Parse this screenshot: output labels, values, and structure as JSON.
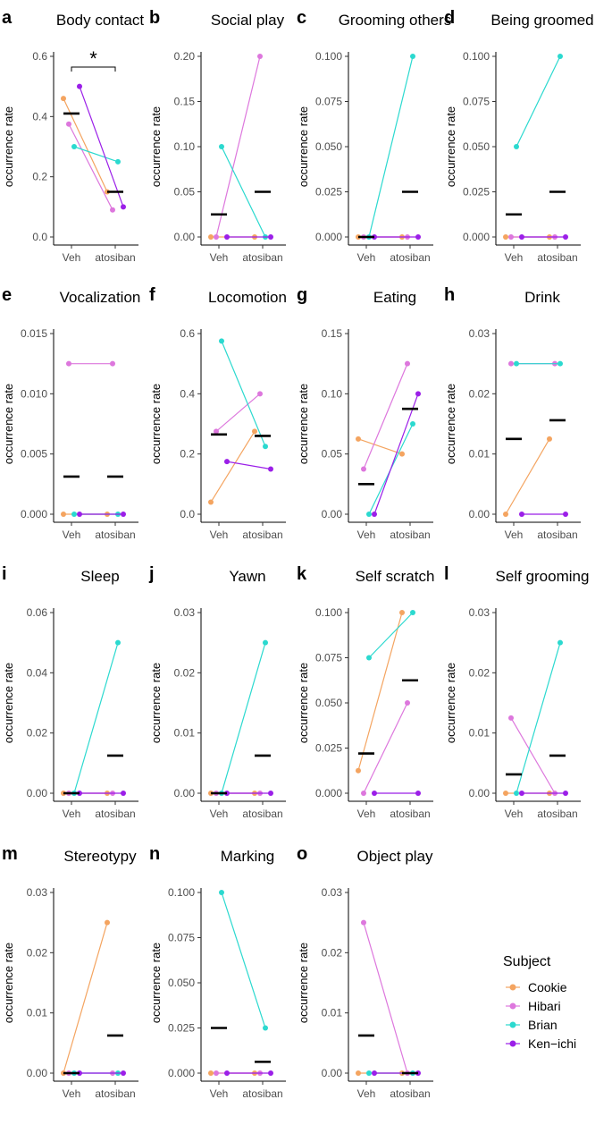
{
  "figure": {
    "y_axis_label": "occurrence rate",
    "conditions": [
      "Veh",
      "atosiban"
    ]
  },
  "legend": {
    "title": "Subject",
    "entries": [
      {
        "name": "Cookie",
        "color": "#f4a460"
      },
      {
        "name": "Hibari",
        "color": "#dd77dd"
      },
      {
        "name": "Brian",
        "color": "#2bd9cf"
      },
      {
        "name": "Ken−ichi",
        "color": "#9b1fe8"
      }
    ]
  },
  "chart_data": [
    {
      "letter": "a",
      "title": "Body contact",
      "type": "line",
      "categories": [
        "Veh",
        "atosiban"
      ],
      "ylim": [
        0,
        0.6
      ],
      "yticks": [
        "0.0",
        "0.2",
        "0.4",
        "0.6"
      ],
      "yticks_values": [
        0,
        0.2,
        0.4,
        0.6
      ],
      "series": [
        {
          "name": "Cookie",
          "values": [
            0.46,
            0.15
          ]
        },
        {
          "name": "Hibari",
          "values": [
            0.375,
            0.09
          ]
        },
        {
          "name": "Brian",
          "values": [
            0.3,
            0.25
          ]
        },
        {
          "name": "Ken−ichi",
          "values": [
            0.5,
            0.1
          ]
        }
      ],
      "means": [
        0.41,
        0.15
      ],
      "significance": "*"
    },
    {
      "letter": "b",
      "title": "Social play",
      "type": "line",
      "categories": [
        "Veh",
        "atosiban"
      ],
      "ylim": [
        0,
        0.2
      ],
      "yticks": [
        "0.00",
        "0.05",
        "0.10",
        "0.15",
        "0.20"
      ],
      "yticks_values": [
        0,
        0.05,
        0.1,
        0.15,
        0.2
      ],
      "series": [
        {
          "name": "Cookie",
          "values": [
            0,
            0
          ]
        },
        {
          "name": "Hibari",
          "values": [
            0,
            0.2
          ]
        },
        {
          "name": "Brian",
          "values": [
            0.1,
            0
          ]
        },
        {
          "name": "Ken−ichi",
          "values": [
            0,
            0
          ]
        }
      ],
      "means": [
        0.025,
        0.05
      ]
    },
    {
      "letter": "c",
      "title": "Grooming others",
      "type": "line",
      "categories": [
        "Veh",
        "atosiban"
      ],
      "ylim": [
        0,
        0.1
      ],
      "yticks": [
        "0.000",
        "0.025",
        "0.050",
        "0.075",
        "0.100"
      ],
      "yticks_values": [
        0,
        0.025,
        0.05,
        0.075,
        0.1
      ],
      "series": [
        {
          "name": "Cookie",
          "values": [
            0,
            0
          ]
        },
        {
          "name": "Hibari",
          "values": [
            0,
            0
          ]
        },
        {
          "name": "Brian",
          "values": [
            0,
            0.1
          ]
        },
        {
          "name": "Ken−ichi",
          "values": [
            0,
            0
          ]
        }
      ],
      "means": [
        0,
        0.025
      ]
    },
    {
      "letter": "d",
      "title": "Being groomed",
      "type": "line",
      "categories": [
        "Veh",
        "atosiban"
      ],
      "ylim": [
        0,
        0.1
      ],
      "yticks": [
        "0.000",
        "0.025",
        "0.050",
        "0.075",
        "0.100"
      ],
      "yticks_values": [
        0,
        0.025,
        0.05,
        0.075,
        0.1
      ],
      "series": [
        {
          "name": "Cookie",
          "values": [
            0,
            0
          ]
        },
        {
          "name": "Hibari",
          "values": [
            0,
            0
          ]
        },
        {
          "name": "Brian",
          "values": [
            0.05,
            0.1
          ]
        },
        {
          "name": "Ken−ichi",
          "values": [
            0,
            0
          ]
        }
      ],
      "means": [
        0.0125,
        0.025
      ]
    },
    {
      "letter": "e",
      "title": "Vocalization",
      "type": "line",
      "categories": [
        "Veh",
        "atosiban"
      ],
      "ylim": [
        0,
        0.015
      ],
      "yticks": [
        "0.000",
        "0.005",
        "0.010",
        "0.015"
      ],
      "yticks_values": [
        0,
        0.005,
        0.01,
        0.015
      ],
      "series": [
        {
          "name": "Cookie",
          "values": [
            0,
            0
          ]
        },
        {
          "name": "Hibari",
          "values": [
            0.0125,
            0.0125
          ]
        },
        {
          "name": "Brian",
          "values": [
            0,
            0
          ]
        },
        {
          "name": "Ken−ichi",
          "values": [
            0,
            0
          ]
        }
      ],
      "means": [
        0.003125,
        0.003125
      ]
    },
    {
      "letter": "f",
      "title": "Locomotion",
      "type": "line",
      "categories": [
        "Veh",
        "atosiban"
      ],
      "ylim": [
        0,
        0.6
      ],
      "yticks": [
        "0.0",
        "0.2",
        "0.4",
        "0.6"
      ],
      "yticks_values": [
        0,
        0.2,
        0.4,
        0.6
      ],
      "series": [
        {
          "name": "Cookie",
          "values": [
            0.04,
            0.275
          ]
        },
        {
          "name": "Hibari",
          "values": [
            0.275,
            0.4
          ]
        },
        {
          "name": "Brian",
          "values": [
            0.575,
            0.225
          ]
        },
        {
          "name": "Ken−ichi",
          "values": [
            0.175,
            0.15
          ]
        }
      ],
      "means": [
        0.265,
        0.26
      ]
    },
    {
      "letter": "g",
      "title": "Eating",
      "type": "line",
      "categories": [
        "Veh",
        "atosiban"
      ],
      "ylim": [
        0,
        0.15
      ],
      "yticks": [
        "0.00",
        "0.05",
        "0.10",
        "0.15"
      ],
      "yticks_values": [
        0,
        0.05,
        0.1,
        0.15
      ],
      "series": [
        {
          "name": "Cookie",
          "values": [
            0.0625,
            0.05
          ]
        },
        {
          "name": "Hibari",
          "values": [
            0.0375,
            0.125
          ]
        },
        {
          "name": "Brian",
          "values": [
            0,
            0.075
          ]
        },
        {
          "name": "Ken−ichi",
          "values": [
            0,
            0.1
          ]
        }
      ],
      "means": [
        0.025,
        0.0875
      ]
    },
    {
      "letter": "h",
      "title": "Drink",
      "type": "line",
      "categories": [
        "Veh",
        "atosiban"
      ],
      "ylim": [
        0,
        0.03
      ],
      "yticks": [
        "0.00",
        "0.01",
        "0.02",
        "0.03"
      ],
      "yticks_values": [
        0,
        0.01,
        0.02,
        0.03
      ],
      "series": [
        {
          "name": "Cookie",
          "values": [
            0,
            0.0125
          ]
        },
        {
          "name": "Hibari",
          "values": [
            0.025,
            0.025
          ]
        },
        {
          "name": "Brian",
          "values": [
            0.025,
            0.025
          ]
        },
        {
          "name": "Ken−ichi",
          "values": [
            0,
            0
          ]
        }
      ],
      "means": [
        0.0125,
        0.0156
      ]
    },
    {
      "letter": "i",
      "title": "Sleep",
      "type": "line",
      "categories": [
        "Veh",
        "atosiban"
      ],
      "ylim": [
        0,
        0.06
      ],
      "yticks": [
        "0.00",
        "0.02",
        "0.04",
        "0.06"
      ],
      "yticks_values": [
        0,
        0.02,
        0.04,
        0.06
      ],
      "series": [
        {
          "name": "Cookie",
          "values": [
            0,
            0
          ]
        },
        {
          "name": "Hibari",
          "values": [
            0,
            0
          ]
        },
        {
          "name": "Brian",
          "values": [
            0,
            0.05
          ]
        },
        {
          "name": "Ken−ichi",
          "values": [
            0,
            0
          ]
        }
      ],
      "means": [
        0,
        0.0125
      ]
    },
    {
      "letter": "j",
      "title": "Yawn",
      "type": "line",
      "categories": [
        "Veh",
        "atosiban"
      ],
      "ylim": [
        0,
        0.03
      ],
      "yticks": [
        "0.00",
        "0.01",
        "0.02",
        "0.03"
      ],
      "yticks_values": [
        0,
        0.01,
        0.02,
        0.03
      ],
      "series": [
        {
          "name": "Cookie",
          "values": [
            0,
            0
          ]
        },
        {
          "name": "Hibari",
          "values": [
            0,
            0
          ]
        },
        {
          "name": "Brian",
          "values": [
            0,
            0.025
          ]
        },
        {
          "name": "Ken−ichi",
          "values": [
            0,
            0
          ]
        }
      ],
      "means": [
        0,
        0.00625
      ]
    },
    {
      "letter": "k",
      "title": "Self scratch",
      "type": "line",
      "categories": [
        "Veh",
        "atosiban"
      ],
      "ylim": [
        0,
        0.1
      ],
      "yticks": [
        "0.000",
        "0.025",
        "0.050",
        "0.075",
        "0.100"
      ],
      "yticks_values": [
        0,
        0.025,
        0.05,
        0.075,
        0.1
      ],
      "series": [
        {
          "name": "Cookie",
          "values": [
            0.0125,
            0.1
          ]
        },
        {
          "name": "Hibari",
          "values": [
            0,
            0.05
          ]
        },
        {
          "name": "Brian",
          "values": [
            0.075,
            0.1
          ]
        },
        {
          "name": "Ken−ichi",
          "values": [
            0,
            0
          ]
        }
      ],
      "means": [
        0.022,
        0.0625
      ]
    },
    {
      "letter": "l",
      "title": "Self grooming",
      "type": "line",
      "categories": [
        "Veh",
        "atosiban"
      ],
      "ylim": [
        0,
        0.03
      ],
      "yticks": [
        "0.00",
        "0.01",
        "0.02",
        "0.03"
      ],
      "yticks_values": [
        0,
        0.01,
        0.02,
        0.03
      ],
      "series": [
        {
          "name": "Cookie",
          "values": [
            0,
            0
          ]
        },
        {
          "name": "Hibari",
          "values": [
            0.0125,
            0
          ]
        },
        {
          "name": "Brian",
          "values": [
            0,
            0.025
          ]
        },
        {
          "name": "Ken−ichi",
          "values": [
            0,
            0
          ]
        }
      ],
      "means": [
        0.003125,
        0.00625
      ]
    },
    {
      "letter": "m",
      "title": "Stereotypy",
      "type": "line",
      "categories": [
        "Veh",
        "atosiban"
      ],
      "ylim": [
        0,
        0.03
      ],
      "yticks": [
        "0.00",
        "0.01",
        "0.02",
        "0.03"
      ],
      "yticks_values": [
        0,
        0.01,
        0.02,
        0.03
      ],
      "series": [
        {
          "name": "Cookie",
          "values": [
            0,
            0.025
          ]
        },
        {
          "name": "Hibari",
          "values": [
            0,
            0
          ]
        },
        {
          "name": "Brian",
          "values": [
            0,
            0
          ]
        },
        {
          "name": "Ken−ichi",
          "values": [
            0,
            0
          ]
        }
      ],
      "means": [
        0,
        0.00625
      ]
    },
    {
      "letter": "n",
      "title": "Marking",
      "type": "line",
      "categories": [
        "Veh",
        "atosiban"
      ],
      "ylim": [
        0,
        0.1
      ],
      "yticks": [
        "0.000",
        "0.025",
        "0.050",
        "0.075",
        "0.100"
      ],
      "yticks_values": [
        0,
        0.025,
        0.05,
        0.075,
        0.1
      ],
      "series": [
        {
          "name": "Cookie",
          "values": [
            0,
            0
          ]
        },
        {
          "name": "Hibari",
          "values": [
            0,
            0
          ]
        },
        {
          "name": "Brian",
          "values": [
            0.1,
            0.025
          ]
        },
        {
          "name": "Ken−ichi",
          "values": [
            0,
            0
          ]
        }
      ],
      "means": [
        0.025,
        0.00625
      ]
    },
    {
      "letter": "o",
      "title": "Object play",
      "type": "line",
      "categories": [
        "Veh",
        "atosiban"
      ],
      "ylim": [
        0,
        0.03
      ],
      "yticks": [
        "0.00",
        "0.01",
        "0.02",
        "0.03"
      ],
      "yticks_values": [
        0,
        0.01,
        0.02,
        0.03
      ],
      "series": [
        {
          "name": "Cookie",
          "values": [
            0,
            0
          ]
        },
        {
          "name": "Hibari",
          "values": [
            0.025,
            0
          ]
        },
        {
          "name": "Brian",
          "values": [
            0,
            0
          ]
        },
        {
          "name": "Ken−ichi",
          "values": [
            0,
            0
          ]
        }
      ],
      "means": [
        0.00625,
        0
      ]
    }
  ]
}
